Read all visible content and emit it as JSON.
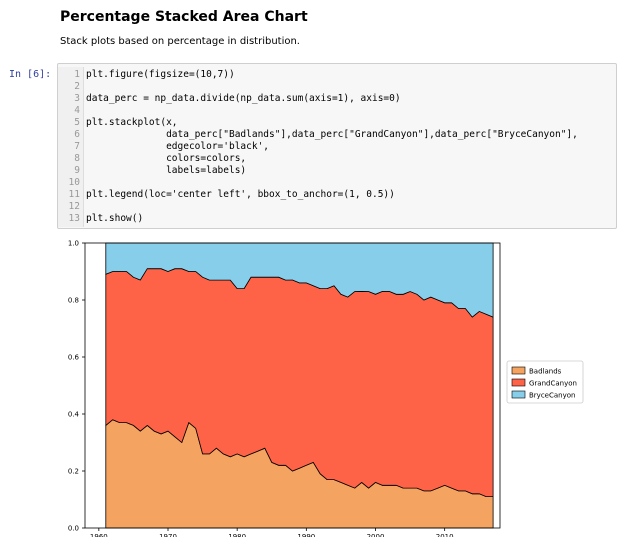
{
  "markdown": {
    "title": "Percentage Stacked Area Chart",
    "subtitle": "Stack plots based on percentage in distribution."
  },
  "cell": {
    "prompt": "In [6]:",
    "lines": [
      {
        "n": "1",
        "code": "plt.figure(figsize=(10,7))"
      },
      {
        "n": "2",
        "code": ""
      },
      {
        "n": "3",
        "code": "data_perc = np_data.divide(np_data.sum(axis=1), axis=0)"
      },
      {
        "n": "4",
        "code": ""
      },
      {
        "n": "5",
        "code": "plt.stackplot(x,"
      },
      {
        "n": "6",
        "code": "              data_perc[\"Badlands\"],data_perc[\"GrandCanyon\"],data_perc[\"BryceCanyon\"],"
      },
      {
        "n": "7",
        "code": "              edgecolor='black',"
      },
      {
        "n": "8",
        "code": "              colors=colors,"
      },
      {
        "n": "9",
        "code": "              labels=labels)"
      },
      {
        "n": "10",
        "code": ""
      },
      {
        "n": "11",
        "code": "plt.legend(loc='center left', bbox_to_anchor=(1, 0.5))"
      },
      {
        "n": "12",
        "code": ""
      },
      {
        "n": "13",
        "code": "plt.show()"
      }
    ]
  },
  "chart_data": {
    "type": "area",
    "stacked": true,
    "title": "",
    "xlabel": "",
    "ylabel": "",
    "xlim": [
      1958,
      2018
    ],
    "ylim": [
      0.0,
      1.0
    ],
    "xticks": [
      "1960",
      "1970",
      "1980",
      "1990",
      "2000",
      "2010"
    ],
    "yticks": [
      "0.0",
      "0.2",
      "0.4",
      "0.6",
      "0.8",
      "1.0"
    ],
    "grid": false,
    "edgecolor": "#000000",
    "legend_position": "center-left outside right",
    "x": [
      1961,
      1962,
      1963,
      1964,
      1965,
      1966,
      1967,
      1968,
      1969,
      1970,
      1971,
      1972,
      1973,
      1974,
      1975,
      1976,
      1977,
      1978,
      1979,
      1980,
      1981,
      1982,
      1983,
      1984,
      1985,
      1986,
      1987,
      1988,
      1989,
      1990,
      1991,
      1992,
      1993,
      1994,
      1995,
      1996,
      1997,
      1998,
      1999,
      2000,
      2001,
      2002,
      2003,
      2004,
      2005,
      2006,
      2007,
      2008,
      2009,
      2010,
      2011,
      2012,
      2013,
      2014,
      2015,
      2016,
      2017
    ],
    "series": [
      {
        "name": "Badlands",
        "color": "#F4A460",
        "values": [
          0.36,
          0.38,
          0.37,
          0.37,
          0.36,
          0.34,
          0.36,
          0.34,
          0.33,
          0.34,
          0.32,
          0.3,
          0.37,
          0.35,
          0.26,
          0.26,
          0.28,
          0.26,
          0.25,
          0.26,
          0.25,
          0.26,
          0.27,
          0.28,
          0.23,
          0.22,
          0.22,
          0.2,
          0.21,
          0.22,
          0.23,
          0.19,
          0.17,
          0.17,
          0.16,
          0.15,
          0.14,
          0.16,
          0.14,
          0.16,
          0.15,
          0.15,
          0.15,
          0.14,
          0.14,
          0.14,
          0.13,
          0.13,
          0.14,
          0.15,
          0.14,
          0.13,
          0.13,
          0.12,
          0.12,
          0.11,
          0.11
        ]
      },
      {
        "name": "GrandCanyon",
        "color": "#FF6347",
        "values": [
          0.53,
          0.52,
          0.53,
          0.53,
          0.52,
          0.53,
          0.55,
          0.57,
          0.58,
          0.56,
          0.59,
          0.61,
          0.53,
          0.55,
          0.62,
          0.61,
          0.59,
          0.61,
          0.62,
          0.58,
          0.59,
          0.62,
          0.61,
          0.6,
          0.65,
          0.66,
          0.65,
          0.67,
          0.65,
          0.64,
          0.62,
          0.65,
          0.67,
          0.68,
          0.66,
          0.66,
          0.69,
          0.67,
          0.69,
          0.66,
          0.68,
          0.68,
          0.67,
          0.68,
          0.69,
          0.68,
          0.67,
          0.68,
          0.66,
          0.64,
          0.65,
          0.64,
          0.64,
          0.62,
          0.64,
          0.64,
          0.63
        ]
      },
      {
        "name": "BryceCanyon",
        "color": "#87CEEB",
        "values": [
          0.11,
          0.1,
          0.1,
          0.1,
          0.12,
          0.13,
          0.09,
          0.09,
          0.09,
          0.1,
          0.09,
          0.09,
          0.1,
          0.1,
          0.12,
          0.13,
          0.13,
          0.13,
          0.13,
          0.16,
          0.16,
          0.12,
          0.12,
          0.12,
          0.12,
          0.12,
          0.13,
          0.13,
          0.14,
          0.14,
          0.15,
          0.16,
          0.16,
          0.15,
          0.18,
          0.19,
          0.17,
          0.17,
          0.17,
          0.18,
          0.17,
          0.17,
          0.18,
          0.18,
          0.17,
          0.18,
          0.2,
          0.19,
          0.2,
          0.21,
          0.21,
          0.23,
          0.23,
          0.26,
          0.24,
          0.25,
          0.26
        ]
      }
    ]
  }
}
